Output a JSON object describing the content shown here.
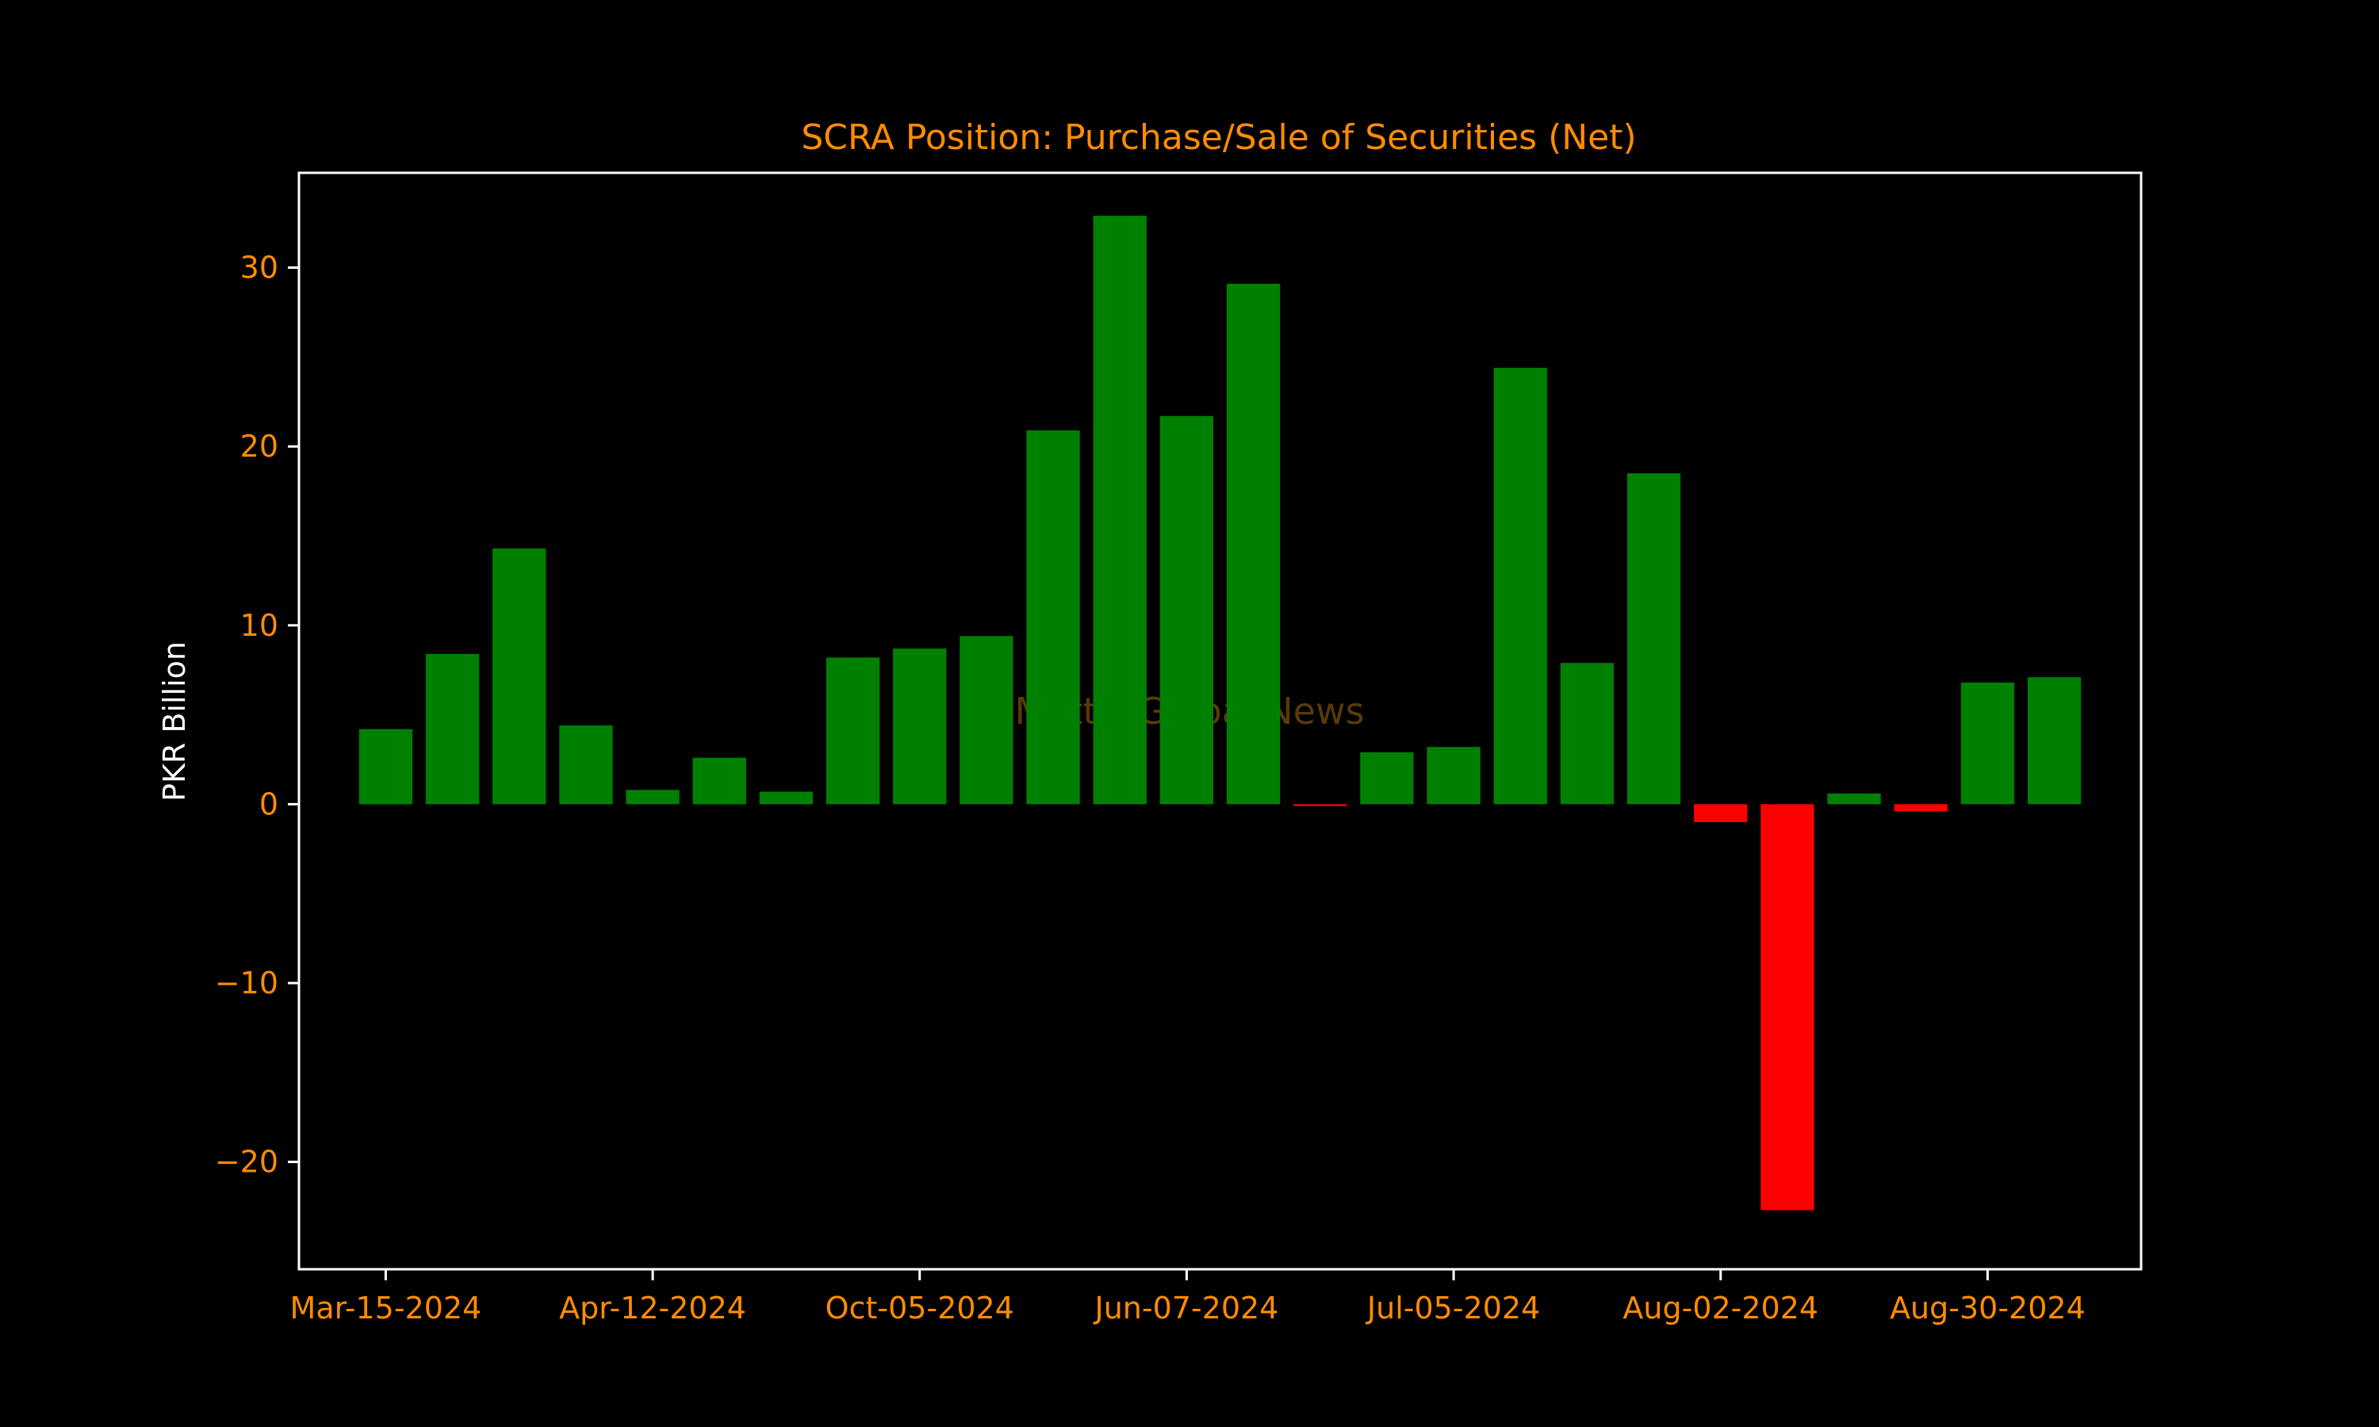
{
  "chart_data": {
    "type": "bar",
    "title": "SCRA Position: Purchase/Sale of Securities (Net)",
    "xlabel": "",
    "ylabel": "PKR Billion",
    "watermark": "Mettis Global News",
    "ylim": [
      -26.0,
      35.3
    ],
    "yticks": [
      -20,
      -10,
      0,
      10,
      20,
      30
    ],
    "xtick_labels": [
      {
        "index": 0,
        "label": "Mar-15-2024"
      },
      {
        "index": 4,
        "label": "Apr-12-2024"
      },
      {
        "index": 8,
        "label": "Oct-05-2024"
      },
      {
        "index": 12,
        "label": "Jun-07-2024"
      },
      {
        "index": 16,
        "label": "Jul-05-2024"
      },
      {
        "index": 20,
        "label": "Aug-02-2024"
      },
      {
        "index": 24,
        "label": "Aug-30-2024"
      }
    ],
    "values": [
      4.2,
      8.4,
      14.3,
      4.4,
      0.8,
      2.6,
      0.7,
      8.2,
      8.7,
      9.4,
      20.9,
      32.9,
      21.7,
      29.1,
      -0.1,
      2.9,
      3.2,
      24.4,
      7.9,
      18.5,
      -1.0,
      -22.7,
      0.6,
      -0.4,
      6.8,
      7.1
    ],
    "positive_color": "#008000",
    "negative_color": "#ff0000",
    "axes_color": "#ffffff",
    "text_color": "#ff8c00",
    "background": "#000000",
    "grid": false,
    "legend": "none"
  }
}
